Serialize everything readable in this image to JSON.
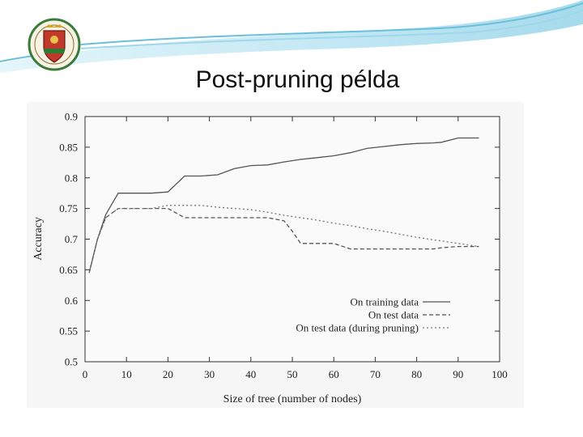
{
  "slide": {
    "title": "Post-pruning példa",
    "logo_icon": "university-crest-icon"
  },
  "chart_data": {
    "type": "line",
    "title": "",
    "xlabel": "Size of tree (number of nodes)",
    "ylabel": "Accuracy",
    "xlim": [
      0,
      100
    ],
    "ylim": [
      0.5,
      0.9
    ],
    "x_ticks": [
      "0",
      "10",
      "20",
      "30",
      "40",
      "50",
      "60",
      "70",
      "80",
      "90",
      "100"
    ],
    "y_ticks": [
      "0.5",
      "0.55",
      "0.6",
      "0.65",
      "0.7",
      "0.75",
      "0.8",
      "0.85",
      "0.9"
    ],
    "legend_position": "bottom-right",
    "series": [
      {
        "name": "On training data",
        "style": "solid",
        "points": [
          [
            1,
            0.645
          ],
          [
            3,
            0.7
          ],
          [
            5,
            0.74
          ],
          [
            8,
            0.775
          ],
          [
            12,
            0.775
          ],
          [
            16,
            0.775
          ],
          [
            20,
            0.777
          ],
          [
            24,
            0.803
          ],
          [
            28,
            0.803
          ],
          [
            32,
            0.805
          ],
          [
            36,
            0.815
          ],
          [
            40,
            0.82
          ],
          [
            44,
            0.821
          ],
          [
            48,
            0.826
          ],
          [
            52,
            0.83
          ],
          [
            56,
            0.833
          ],
          [
            60,
            0.836
          ],
          [
            64,
            0.841
          ],
          [
            68,
            0.848
          ],
          [
            72,
            0.851
          ],
          [
            76,
            0.854
          ],
          [
            80,
            0.856
          ],
          [
            84,
            0.857
          ],
          [
            86,
            0.858
          ],
          [
            90,
            0.865
          ],
          [
            95,
            0.865
          ]
        ]
      },
      {
        "name": "On test data",
        "style": "dashed",
        "points": [
          [
            1,
            0.645
          ],
          [
            3,
            0.7
          ],
          [
            5,
            0.735
          ],
          [
            8,
            0.75
          ],
          [
            12,
            0.75
          ],
          [
            16,
            0.75
          ],
          [
            20,
            0.75
          ],
          [
            24,
            0.735
          ],
          [
            28,
            0.735
          ],
          [
            32,
            0.735
          ],
          [
            36,
            0.735
          ],
          [
            40,
            0.735
          ],
          [
            44,
            0.735
          ],
          [
            48,
            0.73
          ],
          [
            50,
            0.713
          ],
          [
            52,
            0.693
          ],
          [
            56,
            0.693
          ],
          [
            60,
            0.693
          ],
          [
            64,
            0.684
          ],
          [
            68,
            0.684
          ],
          [
            72,
            0.684
          ],
          [
            76,
            0.684
          ],
          [
            80,
            0.684
          ],
          [
            84,
            0.684
          ],
          [
            86,
            0.686
          ],
          [
            90,
            0.688
          ],
          [
            95,
            0.688
          ]
        ]
      },
      {
        "name": "On test data (during pruning)",
        "style": "dotted",
        "points": [
          [
            1,
            0.645
          ],
          [
            3,
            0.7
          ],
          [
            5,
            0.735
          ],
          [
            8,
            0.75
          ],
          [
            12,
            0.75
          ],
          [
            16,
            0.75
          ],
          [
            20,
            0.755
          ],
          [
            24,
            0.755
          ],
          [
            28,
            0.755
          ],
          [
            32,
            0.752
          ],
          [
            36,
            0.75
          ],
          [
            40,
            0.748
          ],
          [
            44,
            0.744
          ],
          [
            48,
            0.739
          ],
          [
            52,
            0.735
          ],
          [
            56,
            0.731
          ],
          [
            60,
            0.726
          ],
          [
            64,
            0.722
          ],
          [
            68,
            0.717
          ],
          [
            72,
            0.713
          ],
          [
            76,
            0.708
          ],
          [
            80,
            0.703
          ],
          [
            84,
            0.699
          ],
          [
            88,
            0.695
          ],
          [
            92,
            0.691
          ],
          [
            95,
            0.688
          ]
        ]
      }
    ]
  }
}
